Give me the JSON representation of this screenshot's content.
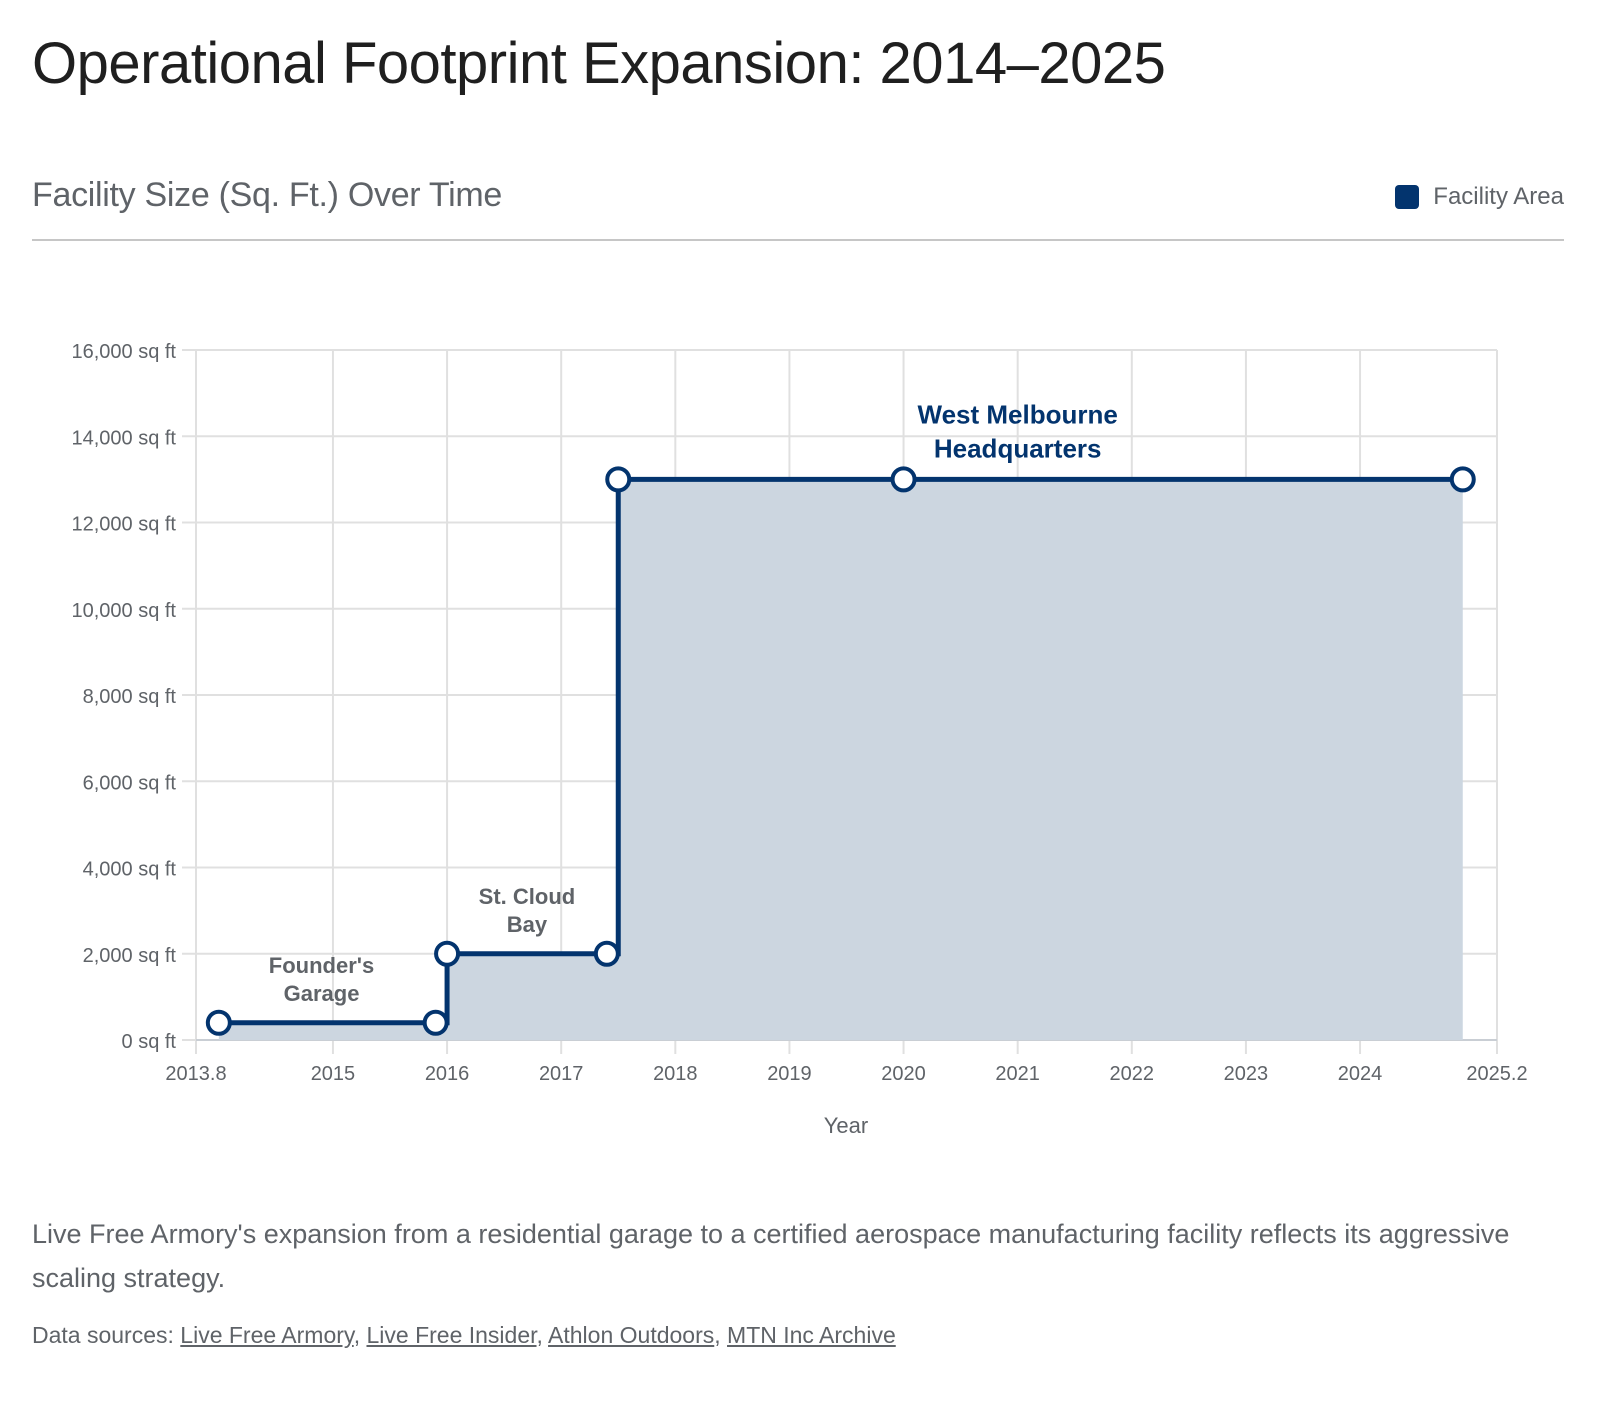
{
  "page": {
    "title": "Operational Footprint Expansion: 2014–2025",
    "subtitle": "Facility Size (Sq. Ft.) Over Time",
    "legend": {
      "label": "Facility Area",
      "color": "#03346E"
    },
    "caption": "Live Free Armory's expansion from a residential garage to a certified aerospace manufacturing facility reflects its aggressive scaling strategy.",
    "sources_label": "Data sources:",
    "sources": [
      "Live Free Armory",
      "Live Free Insider",
      "Athlon Outdoors",
      "MTN Inc Archive"
    ],
    "colors": {
      "line": "#03346E",
      "fill": "#CCD6E0",
      "grid": "#E0E0E0",
      "axis_text": "#5f6368",
      "annotation_muted": "#5f6368",
      "annotation_accent": "#03346E"
    }
  },
  "chart_data": {
    "type": "area",
    "step": "after",
    "title": "Facility Size (Sq. Ft.) Over Time",
    "xlabel": "Year",
    "ylabel": "",
    "xlim": [
      2013.8,
      2025.2
    ],
    "ylim": [
      0,
      16000
    ],
    "grid": true,
    "legend_position": "top-right",
    "x_ticks": [
      2013.8,
      2015,
      2016,
      2017,
      2018,
      2019,
      2020,
      2021,
      2022,
      2023,
      2024,
      2025.2
    ],
    "x_tick_labels": [
      "2013.8",
      "2015",
      "2016",
      "2017",
      "2018",
      "2019",
      "2020",
      "2021",
      "2022",
      "2023",
      "2024",
      "2025.2"
    ],
    "y_ticks": [
      0,
      2000,
      4000,
      6000,
      8000,
      10000,
      12000,
      14000,
      16000
    ],
    "y_tick_labels": [
      "0 sq ft",
      "2,000 sq ft",
      "4,000 sq ft",
      "6,000 sq ft",
      "8,000 sq ft",
      "10,000 sq ft",
      "12,000 sq ft",
      "14,000 sq ft",
      "16,000 sq ft"
    ],
    "series": [
      {
        "name": "Facility Area",
        "points": [
          {
            "x": 2014.0,
            "y": 400
          },
          {
            "x": 2015.9,
            "y": 400
          },
          {
            "x": 2016.0,
            "y": 2000
          },
          {
            "x": 2017.4,
            "y": 2000
          },
          {
            "x": 2017.5,
            "y": 13000
          },
          {
            "x": 2020.0,
            "y": 13000
          },
          {
            "x": 2024.9,
            "y": 13000
          }
        ]
      }
    ],
    "annotations": [
      {
        "lines": [
          "Founder's",
          "Garage"
        ],
        "x": 2014.9,
        "y": 400,
        "style": "muted"
      },
      {
        "lines": [
          "St. Cloud",
          "Bay"
        ],
        "x": 2016.7,
        "y": 2000,
        "style": "muted"
      },
      {
        "lines": [
          "West Melbourne",
          "Headquarters"
        ],
        "x": 2021.0,
        "y": 13000,
        "style": "accent"
      }
    ]
  }
}
